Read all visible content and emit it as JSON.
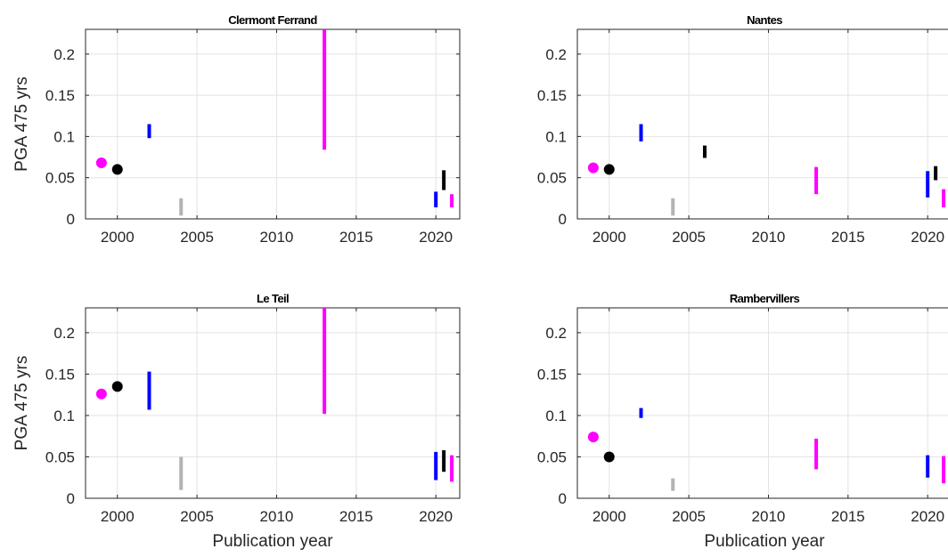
{
  "figure": {
    "shared_xlabel": "Publication year",
    "shared_ylabel": "PGA 475 yrs"
  },
  "colors": {
    "magenta": "#ff00ff",
    "black": "#000000",
    "blue": "#0000ff",
    "gray": "#b3b3b3"
  },
  "chart_data": [
    {
      "type": "scatter",
      "title": "Clermont Ferrand",
      "xlabel": "",
      "ylabel": "PGA 475 yrs",
      "xlim": [
        1998,
        2021.5
      ],
      "ylim": [
        0,
        0.23
      ],
      "xticks": [
        "2000",
        "2005",
        "2010",
        "2015",
        "2020"
      ],
      "yticks": [
        "0",
        "0.05",
        "0.1",
        "0.15",
        "0.2"
      ],
      "grid": true,
      "points": [
        {
          "x": 1999,
          "y": 0.068,
          "color": "magenta"
        },
        {
          "x": 2000,
          "y": 0.06,
          "color": "black"
        }
      ],
      "ranges": [
        {
          "x": 2002,
          "low": 0.098,
          "high": 0.115,
          "color": "blue"
        },
        {
          "x": 2004,
          "low": 0.004,
          "high": 0.025,
          "color": "gray"
        },
        {
          "x": 2013,
          "low": 0.084,
          "high": 0.23,
          "color": "magenta"
        },
        {
          "x": 2020,
          "low": 0.014,
          "high": 0.033,
          "color": "blue"
        },
        {
          "x": 2020.5,
          "low": 0.035,
          "high": 0.059,
          "color": "black"
        },
        {
          "x": 2021,
          "low": 0.014,
          "high": 0.03,
          "color": "magenta"
        }
      ]
    },
    {
      "type": "scatter",
      "title": "Nantes",
      "xlabel": "",
      "ylabel": "",
      "xlim": [
        1998,
        2021.5
      ],
      "ylim": [
        0,
        0.23
      ],
      "xticks": [
        "2000",
        "2005",
        "2010",
        "2015",
        "2020"
      ],
      "yticks": [
        "0",
        "0.05",
        "0.1",
        "0.15",
        "0.2"
      ],
      "grid": true,
      "points": [
        {
          "x": 1999,
          "y": 0.062,
          "color": "magenta"
        },
        {
          "x": 2000,
          "y": 0.06,
          "color": "black"
        }
      ],
      "ranges": [
        {
          "x": 2002,
          "low": 0.094,
          "high": 0.115,
          "color": "blue"
        },
        {
          "x": 2004,
          "low": 0.004,
          "high": 0.025,
          "color": "gray"
        },
        {
          "x": 2006,
          "low": 0.074,
          "high": 0.089,
          "color": "black"
        },
        {
          "x": 2013,
          "low": 0.03,
          "high": 0.063,
          "color": "magenta"
        },
        {
          "x": 2020,
          "low": 0.026,
          "high": 0.058,
          "color": "blue"
        },
        {
          "x": 2020.5,
          "low": 0.047,
          "high": 0.064,
          "color": "black"
        },
        {
          "x": 2021,
          "low": 0.014,
          "high": 0.036,
          "color": "magenta"
        }
      ]
    },
    {
      "type": "scatter",
      "title": "Le Teil",
      "xlabel": "Publication year",
      "ylabel": "PGA 475 yrs",
      "xlim": [
        1998,
        2021.5
      ],
      "ylim": [
        0,
        0.23
      ],
      "xticks": [
        "2000",
        "2005",
        "2010",
        "2015",
        "2020"
      ],
      "yticks": [
        "0",
        "0.05",
        "0.1",
        "0.15",
        "0.2"
      ],
      "grid": true,
      "points": [
        {
          "x": 1999,
          "y": 0.126,
          "color": "magenta"
        },
        {
          "x": 2000,
          "y": 0.135,
          "color": "black"
        }
      ],
      "ranges": [
        {
          "x": 2002,
          "low": 0.107,
          "high": 0.153,
          "color": "blue"
        },
        {
          "x": 2004,
          "low": 0.01,
          "high": 0.05,
          "color": "gray"
        },
        {
          "x": 2013,
          "low": 0.102,
          "high": 0.23,
          "color": "magenta"
        },
        {
          "x": 2020,
          "low": 0.022,
          "high": 0.056,
          "color": "blue"
        },
        {
          "x": 2020.5,
          "low": 0.032,
          "high": 0.058,
          "color": "black"
        },
        {
          "x": 2021,
          "low": 0.02,
          "high": 0.052,
          "color": "magenta"
        }
      ]
    },
    {
      "type": "scatter",
      "title": "Rambervillers",
      "xlabel": "Publication year",
      "ylabel": "",
      "xlim": [
        1998,
        2021.5
      ],
      "ylim": [
        0,
        0.23
      ],
      "xticks": [
        "2000",
        "2005",
        "2010",
        "2015",
        "2020"
      ],
      "yticks": [
        "0",
        "0.05",
        "0.1",
        "0.15",
        "0.2"
      ],
      "grid": true,
      "points": [
        {
          "x": 1999,
          "y": 0.074,
          "color": "magenta"
        },
        {
          "x": 2000,
          "y": 0.05,
          "color": "black"
        }
      ],
      "ranges": [
        {
          "x": 2002,
          "low": 0.097,
          "high": 0.109,
          "color": "blue"
        },
        {
          "x": 2004,
          "low": 0.009,
          "high": 0.024,
          "color": "gray"
        },
        {
          "x": 2013,
          "low": 0.035,
          "high": 0.072,
          "color": "magenta"
        },
        {
          "x": 2020,
          "low": 0.025,
          "high": 0.052,
          "color": "blue"
        },
        {
          "x": 2021,
          "low": 0.018,
          "high": 0.051,
          "color": "magenta"
        }
      ]
    }
  ]
}
